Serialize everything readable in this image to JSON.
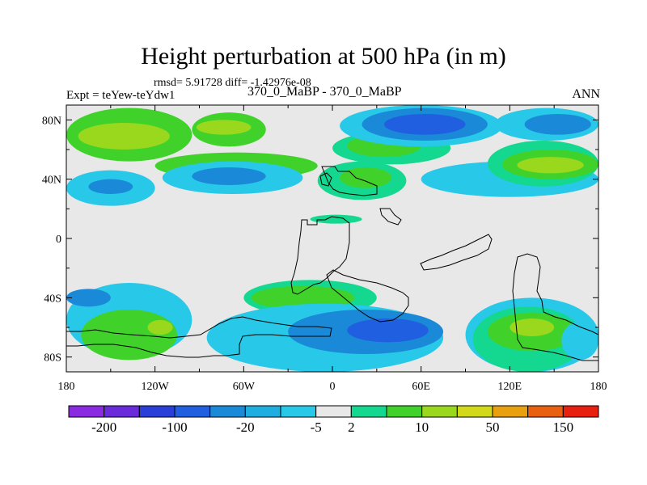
{
  "title": "Height perturbation at 500 hPa (in m)",
  "stats_text": "rmsd= 5.91728 diff= -1.42976e-08",
  "expt_text": "Expt = teYew-teYdw1",
  "case_text": "370_0_MaBP - 370_0_MaBP",
  "season_text": "ANN",
  "chart_data": {
    "type": "heatmap",
    "title": "Height perturbation at 500 hPa (in m)",
    "xlabel": "",
    "ylabel": "",
    "xlim": [
      -180,
      180
    ],
    "ylim": [
      -90,
      90
    ],
    "x_ticks": [
      {
        "value": -180,
        "label": "180"
      },
      {
        "value": -120,
        "label": "120W"
      },
      {
        "value": -60,
        "label": "60W"
      },
      {
        "value": 0,
        "label": "0"
      },
      {
        "value": 60,
        "label": "60E"
      },
      {
        "value": 120,
        "label": "120E"
      },
      {
        "value": 180,
        "label": "180"
      }
    ],
    "y_ticks": [
      {
        "value": 80,
        "label": "80N"
      },
      {
        "value": 40,
        "label": "40N"
      },
      {
        "value": 0,
        "label": "0"
      },
      {
        "value": -40,
        "label": "40S"
      },
      {
        "value": -80,
        "label": "80S"
      }
    ],
    "colorbar": {
      "colors": [
        "#8a2be2",
        "#6a2bdb",
        "#2a3fd8",
        "#1f5fe0",
        "#1a8ad8",
        "#20aee0",
        "#28c8e8",
        "#e8e8e8",
        "#14d890",
        "#40d22a",
        "#9ad81e",
        "#d2d81a",
        "#e8a010",
        "#e86010",
        "#e82010"
      ],
      "labels": [
        "-200",
        "-100",
        "-20",
        "-5",
        "2",
        "10",
        "50",
        "150"
      ],
      "label_boundaries": [
        1,
        3,
        5,
        7,
        8,
        10,
        12,
        14
      ]
    },
    "regions": [
      {
        "color": "#40d22a",
        "lon": [
          -180,
          -95
        ],
        "lat": [
          52,
          88
        ]
      },
      {
        "color": "#9ad81e",
        "lon": [
          -172,
          -110
        ],
        "lat": [
          60,
          78
        ]
      },
      {
        "color": "#40d22a",
        "lon": [
          -95,
          -45
        ],
        "lat": [
          62,
          85
        ]
      },
      {
        "color": "#9ad81e",
        "lon": [
          -92,
          -55
        ],
        "lat": [
          70,
          80
        ]
      },
      {
        "color": "#28c8e8",
        "lon": [
          -180,
          -120
        ],
        "lat": [
          22,
          46
        ]
      },
      {
        "color": "#1a8ad8",
        "lon": [
          -165,
          -135
        ],
        "lat": [
          30,
          40
        ]
      },
      {
        "color": "#40d22a",
        "lon": [
          -120,
          -10
        ],
        "lat": [
          40,
          58
        ]
      },
      {
        "color": "#28c8e8",
        "lon": [
          -115,
          -20
        ],
        "lat": [
          30,
          52
        ]
      },
      {
        "color": "#1a8ad8",
        "lon": [
          -95,
          -45
        ],
        "lat": [
          36,
          48
        ]
      },
      {
        "color": "#14d890",
        "lon": [
          -10,
          50
        ],
        "lat": [
          26,
          52
        ]
      },
      {
        "color": "#40d22a",
        "lon": [
          5,
          40
        ],
        "lat": [
          34,
          48
        ]
      },
      {
        "color": "#14d890",
        "lon": [
          0,
          80
        ],
        "lat": [
          50,
          72
        ]
      },
      {
        "color": "#40d22a",
        "lon": [
          10,
          60
        ],
        "lat": [
          55,
          70
        ]
      },
      {
        "color": "#28c8e8",
        "lon": [
          5,
          115
        ],
        "lat": [
          62,
          90
        ]
      },
      {
        "color": "#1a8ad8",
        "lon": [
          20,
          105
        ],
        "lat": [
          66,
          88
        ]
      },
      {
        "color": "#1f5fe0",
        "lon": [
          35,
          90
        ],
        "lat": [
          70,
          84
        ]
      },
      {
        "color": "#28c8e8",
        "lon": [
          60,
          180
        ],
        "lat": [
          28,
          52
        ]
      },
      {
        "color": "#14d890",
        "lon": [
          105,
          180
        ],
        "lat": [
          35,
          66
        ]
      },
      {
        "color": "#40d22a",
        "lon": [
          115,
          180
        ],
        "lat": [
          40,
          60
        ]
      },
      {
        "color": "#9ad81e",
        "lon": [
          125,
          170
        ],
        "lat": [
          44,
          55
        ]
      },
      {
        "color": "#28c8e8",
        "lon": [
          110,
          180
        ],
        "lat": [
          66,
          88
        ]
      },
      {
        "color": "#1a8ad8",
        "lon": [
          130,
          175
        ],
        "lat": [
          70,
          84
        ]
      },
      {
        "color": "#14d890",
        "lon": [
          -15,
          20
        ],
        "lat": [
          10,
          16
        ]
      },
      {
        "color": "#28c8e8",
        "lon": [
          -180,
          -95
        ],
        "lat": [
          -80,
          -30
        ]
      },
      {
        "color": "#1a8ad8",
        "lon": [
          -180,
          -150
        ],
        "lat": [
          -46,
          -34
        ]
      },
      {
        "color": "#40d22a",
        "lon": [
          -170,
          -105
        ],
        "lat": [
          -82,
          -48
        ]
      },
      {
        "color": "#9ad81e",
        "lon": [
          -125,
          -108
        ],
        "lat": [
          -65,
          -55
        ]
      },
      {
        "color": "#14d890",
        "lon": [
          -60,
          30
        ],
        "lat": [
          -52,
          -28
        ]
      },
      {
        "color": "#40d22a",
        "lon": [
          -55,
          15
        ],
        "lat": [
          -48,
          -32
        ]
      },
      {
        "color": "#28c8e8",
        "lon": [
          -85,
          75
        ],
        "lat": [
          -90,
          -44
        ]
      },
      {
        "color": "#1a8ad8",
        "lon": [
          -30,
          75
        ],
        "lat": [
          -78,
          -48
        ]
      },
      {
        "color": "#1f5fe0",
        "lon": [
          10,
          65
        ],
        "lat": [
          -70,
          -54
        ]
      },
      {
        "color": "#28c8e8",
        "lon": [
          90,
          180
        ],
        "lat": [
          -90,
          -40
        ]
      },
      {
        "color": "#14d890",
        "lon": [
          95,
          170
        ],
        "lat": [
          -90,
          -46
        ]
      },
      {
        "color": "#40d22a",
        "lon": [
          105,
          165
        ],
        "lat": [
          -76,
          -50
        ]
      },
      {
        "color": "#9ad81e",
        "lon": [
          120,
          150
        ],
        "lat": [
          -66,
          -54
        ]
      },
      {
        "color": "#28c8e8",
        "lon": [
          155,
          180
        ],
        "lat": [
          -82,
          -56
        ]
      }
    ]
  }
}
